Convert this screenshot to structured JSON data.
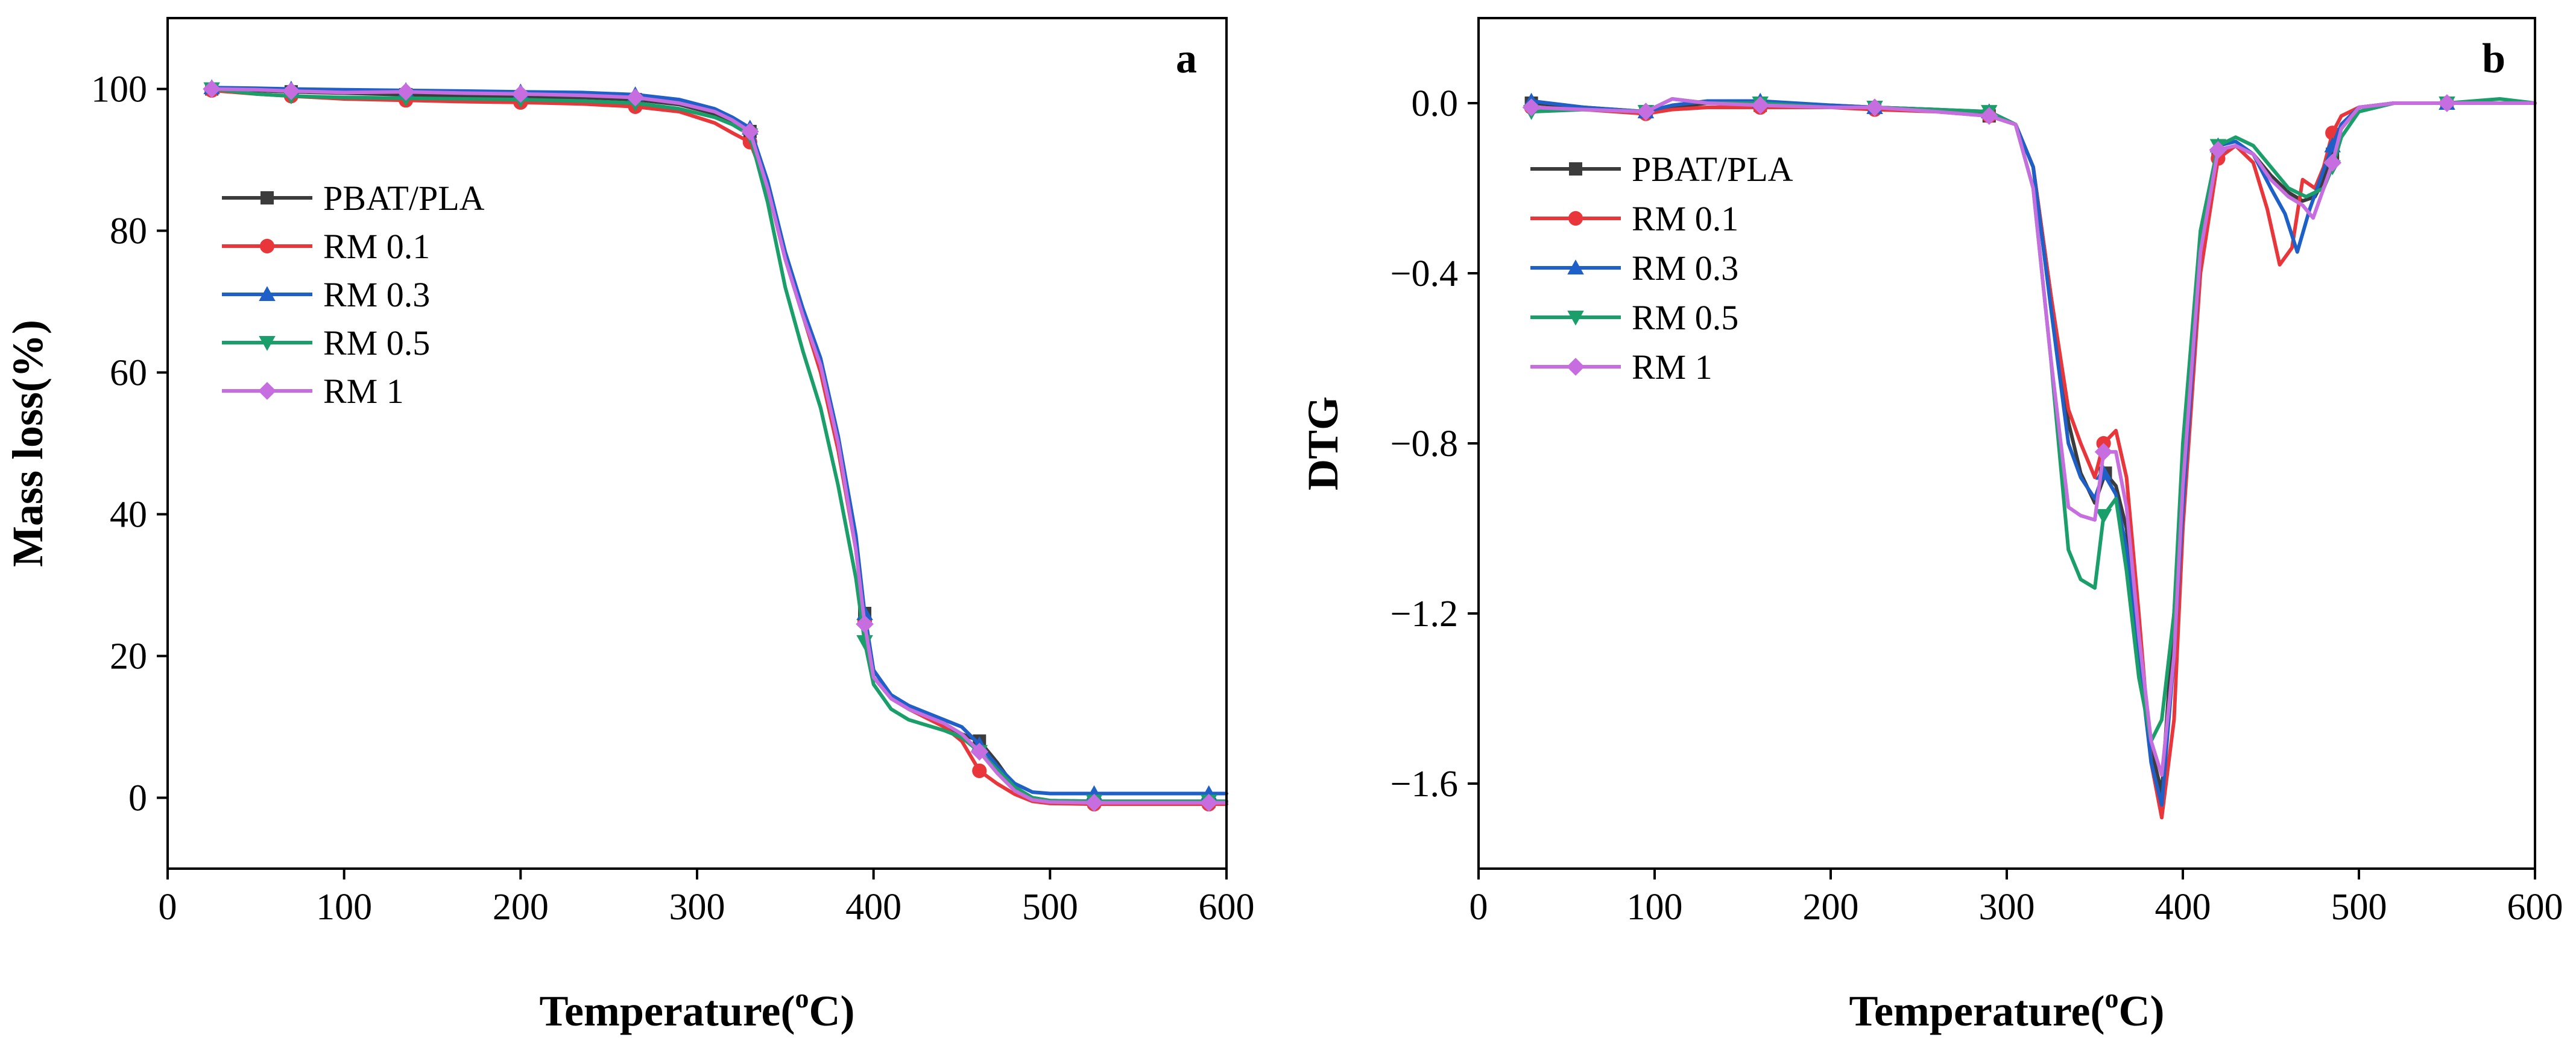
{
  "chart_data": [
    {
      "type": "line",
      "panel": "a",
      "xlabel": "Temperature(oC)",
      "xlabel_main": "Temperature(",
      "xlabel_sup": "o",
      "xlabel_tail": "C)",
      "ylabel": "Mass loss(%)",
      "xlim": [
        0,
        600
      ],
      "ylim": [
        -10,
        110
      ],
      "xticks": [
        "0",
        "100",
        "200",
        "300",
        "400",
        "500",
        "600"
      ],
      "yticks": [
        "0",
        "20",
        "40",
        "60",
        "80",
        "100"
      ],
      "legend_position": "upper-left",
      "series": [
        {
          "name": "PBAT/PLA",
          "color": "#3c3c3c",
          "marker": "square",
          "x": [
            25,
            50,
            70,
            100,
            135,
            170,
            200,
            235,
            265,
            290,
            310,
            320,
            330,
            340,
            350,
            360,
            370,
            380,
            390,
            395,
            400,
            410,
            420,
            440,
            450,
            460,
            470,
            480,
            490,
            500,
            525,
            560,
            590,
            600
          ],
          "y": [
            100,
            99.8,
            99.6,
            99.4,
            99.2,
            99,
            98.9,
            98.8,
            98.5,
            97.8,
            96.5,
            95.5,
            94,
            86,
            76,
            68,
            61,
            50,
            36,
            26,
            17,
            14,
            12.5,
            10.2,
            9,
            8,
            5,
            1.5,
            0,
            -0.4,
            -0.5,
            -0.5,
            -0.5,
            -0.5
          ],
          "marker_x": [
            25,
            70,
            135,
            200,
            265,
            330,
            395,
            460,
            525,
            590
          ]
        },
        {
          "name": "RM 0.1",
          "color": "#e8363a",
          "marker": "circle",
          "x": [
            25,
            50,
            70,
            100,
            135,
            170,
            200,
            235,
            265,
            290,
            310,
            320,
            330,
            340,
            350,
            360,
            370,
            380,
            390,
            395,
            400,
            410,
            420,
            440,
            450,
            460,
            470,
            480,
            490,
            500,
            525,
            560,
            590,
            600
          ],
          "y": [
            99.8,
            99.3,
            99,
            98.6,
            98.4,
            98.2,
            98.1,
            97.9,
            97.5,
            96.8,
            95.2,
            93.8,
            92.5,
            86,
            76,
            68,
            60,
            49,
            35,
            25,
            17,
            14,
            12.5,
            10,
            8,
            3.8,
            2,
            0.5,
            -0.5,
            -0.8,
            -0.9,
            -0.9,
            -0.9,
            -0.9
          ],
          "marker_x": [
            25,
            70,
            135,
            200,
            265,
            330,
            395,
            460,
            525,
            590
          ]
        },
        {
          "name": "RM 0.3",
          "color": "#1e5fc8",
          "marker": "triangle-up",
          "x": [
            25,
            50,
            70,
            100,
            135,
            170,
            200,
            235,
            265,
            290,
            310,
            320,
            330,
            340,
            350,
            360,
            370,
            380,
            390,
            395,
            400,
            410,
            420,
            440,
            450,
            460,
            470,
            480,
            490,
            500,
            525,
            560,
            590,
            600
          ],
          "y": [
            100.2,
            100.1,
            100,
            99.9,
            99.8,
            99.7,
            99.6,
            99.5,
            99.2,
            98.5,
            97.2,
            96,
            94.5,
            87,
            77,
            69,
            62,
            51,
            37,
            26,
            18,
            14.5,
            13,
            11,
            10,
            7.5,
            4.5,
            2,
            0.8,
            0.6,
            0.6,
            0.6,
            0.6,
            0.6
          ],
          "marker_x": [
            25,
            70,
            135,
            200,
            265,
            330,
            395,
            460,
            525,
            590
          ]
        },
        {
          "name": "RM 0.5",
          "color": "#1a9e6a",
          "marker": "triangle-down",
          "x": [
            25,
            50,
            70,
            100,
            135,
            170,
            200,
            235,
            265,
            290,
            310,
            320,
            330,
            340,
            350,
            360,
            370,
            380,
            390,
            395,
            400,
            410,
            420,
            440,
            450,
            460,
            470,
            480,
            490,
            500,
            525,
            560,
            590,
            600
          ],
          "y": [
            100,
            99.3,
            99,
            98.8,
            98.7,
            98.6,
            98.5,
            98.3,
            98,
            97.2,
            96,
            95,
            93.5,
            84,
            72,
            63,
            55,
            44,
            31,
            22,
            16,
            12.5,
            11,
            9.5,
            8.5,
            6.5,
            4,
            1.5,
            0,
            -0.4,
            -0.5,
            -0.5,
            -0.5,
            -0.5
          ],
          "marker_x": [
            25,
            70,
            135,
            200,
            265,
            330,
            395,
            460,
            525,
            590
          ]
        },
        {
          "name": "RM 1",
          "color": "#c66ee0",
          "marker": "diamond",
          "x": [
            25,
            50,
            70,
            100,
            135,
            170,
            200,
            235,
            265,
            290,
            310,
            320,
            330,
            340,
            350,
            360,
            370,
            380,
            390,
            395,
            400,
            410,
            420,
            440,
            450,
            460,
            470,
            480,
            490,
            500,
            525,
            560,
            590,
            600
          ],
          "y": [
            100,
            99.9,
            99.7,
            99.5,
            99.6,
            99.4,
            99.3,
            99.1,
            98.8,
            98,
            96.8,
            95.6,
            94,
            86,
            76,
            68,
            61,
            50,
            35,
            24.5,
            17,
            14,
            12.5,
            10.5,
            9,
            6.5,
            3.5,
            1,
            -0.3,
            -0.6,
            -0.7,
            -0.7,
            -0.7,
            -0.7
          ],
          "marker_x": [
            25,
            70,
            135,
            200,
            265,
            330,
            395,
            460,
            525,
            590
          ]
        }
      ]
    },
    {
      "type": "line",
      "panel": "b",
      "xlabel": "Temperature(oC)",
      "xlabel_main": "Temperature(",
      "xlabel_sup": "o",
      "xlabel_tail": "C)",
      "ylabel": "DTG",
      "xlim": [
        0,
        600
      ],
      "ylim": [
        -1.8,
        0.2
      ],
      "xticks": [
        "0",
        "100",
        "200",
        "300",
        "400",
        "500",
        "600"
      ],
      "yticks": [
        "0.0",
        "−0.4",
        "−0.8",
        "−1.2",
        "−1.6"
      ],
      "legend_position": "upper-left",
      "series": [
        {
          "name": "PBAT/PLA",
          "color": "#3c3c3c",
          "marker": "square",
          "x": [
            30,
            60,
            95,
            110,
            130,
            160,
            200,
            225,
            260,
            290,
            305,
            315,
            325,
            335,
            342,
            350,
            356,
            362,
            368,
            375,
            382,
            388,
            395,
            400,
            410,
            420,
            430,
            440,
            450,
            460,
            468,
            475,
            480,
            485,
            490,
            500,
            520,
            550,
            580,
            600
          ],
          "y": [
            0,
            -0.01,
            -0.02,
            -0.01,
            0,
            -0.005,
            -0.005,
            -0.01,
            -0.015,
            -0.03,
            -0.05,
            -0.15,
            -0.45,
            -0.75,
            -0.87,
            -0.94,
            -0.87,
            -0.9,
            -1.0,
            -1.25,
            -1.52,
            -1.62,
            -1.2,
            -0.9,
            -0.35,
            -0.12,
            -0.1,
            -0.12,
            -0.17,
            -0.21,
            -0.23,
            -0.22,
            -0.18,
            -0.12,
            -0.06,
            -0.01,
            0,
            0,
            0,
            0
          ],
          "marker_x": [
            30,
            95,
            160,
            225,
            290,
            356,
            420,
            485,
            550
          ]
        },
        {
          "name": "RM 0.1",
          "color": "#e8363a",
          "marker": "circle",
          "x": [
            30,
            60,
            95,
            110,
            130,
            160,
            200,
            225,
            260,
            290,
            305,
            315,
            325,
            335,
            342,
            350,
            355,
            362,
            368,
            375,
            382,
            388,
            395,
            400,
            410,
            420,
            430,
            440,
            448,
            455,
            462,
            468,
            475,
            480,
            485,
            490,
            500,
            520,
            550,
            580,
            600
          ],
          "y": [
            -0.01,
            -0.015,
            -0.025,
            -0.015,
            -0.01,
            -0.01,
            -0.01,
            -0.015,
            -0.02,
            -0.03,
            -0.05,
            -0.15,
            -0.45,
            -0.72,
            -0.8,
            -0.88,
            -0.8,
            -0.77,
            -0.88,
            -1.2,
            -1.55,
            -1.68,
            -1.45,
            -1.0,
            -0.4,
            -0.13,
            -0.1,
            -0.14,
            -0.25,
            -0.38,
            -0.34,
            -0.18,
            -0.2,
            -0.15,
            -0.07,
            -0.03,
            -0.01,
            0,
            0,
            0,
            0
          ],
          "marker_x": [
            30,
            95,
            160,
            225,
            290,
            355,
            420,
            485,
            550
          ]
        },
        {
          "name": "RM 0.3",
          "color": "#1e5fc8",
          "marker": "triangle-up",
          "x": [
            30,
            60,
            95,
            110,
            130,
            160,
            200,
            225,
            260,
            290,
            305,
            315,
            325,
            335,
            342,
            350,
            355,
            362,
            368,
            375,
            382,
            388,
            395,
            400,
            410,
            420,
            430,
            440,
            450,
            458,
            465,
            472,
            478,
            485,
            490,
            500,
            520,
            550,
            580,
            600
          ],
          "y": [
            0.005,
            -0.01,
            -0.02,
            -0.005,
            0.005,
            0.005,
            -0.005,
            -0.01,
            -0.015,
            -0.02,
            -0.05,
            -0.15,
            -0.48,
            -0.8,
            -0.88,
            -0.93,
            -0.87,
            -0.92,
            -1.05,
            -1.3,
            -1.55,
            -1.65,
            -1.3,
            -0.95,
            -0.35,
            -0.1,
            -0.09,
            -0.12,
            -0.2,
            -0.26,
            -0.35,
            -0.25,
            -0.18,
            -0.1,
            -0.05,
            -0.01,
            0,
            0,
            0,
            0
          ],
          "marker_x": [
            30,
            95,
            160,
            225,
            290,
            355,
            420,
            485,
            550
          ]
        },
        {
          "name": "RM 0.5",
          "color": "#1a9e6a",
          "marker": "triangle-down",
          "x": [
            30,
            60,
            95,
            110,
            130,
            160,
            200,
            225,
            260,
            290,
            305,
            315,
            325,
            335,
            342,
            350,
            355,
            362,
            368,
            375,
            382,
            388,
            395,
            400,
            410,
            420,
            430,
            440,
            450,
            460,
            470,
            480,
            485,
            490,
            500,
            520,
            550,
            580,
            600
          ],
          "y": [
            -0.02,
            -0.015,
            -0.02,
            0.01,
            0,
            0,
            -0.01,
            -0.01,
            -0.015,
            -0.02,
            -0.05,
            -0.2,
            -0.6,
            -1.05,
            -1.12,
            -1.14,
            -0.97,
            -0.93,
            -1.1,
            -1.35,
            -1.5,
            -1.45,
            -1.2,
            -0.8,
            -0.3,
            -0.1,
            -0.08,
            -0.1,
            -0.15,
            -0.2,
            -0.22,
            -0.2,
            -0.15,
            -0.08,
            -0.02,
            0,
            0,
            0.01,
            0
          ],
          "marker_x": [
            30,
            95,
            160,
            225,
            290,
            355,
            420,
            485,
            550
          ]
        },
        {
          "name": "RM 1",
          "color": "#c66ee0",
          "marker": "diamond",
          "x": [
            30,
            60,
            95,
            110,
            130,
            160,
            200,
            225,
            260,
            290,
            305,
            315,
            325,
            335,
            342,
            350,
            355,
            362,
            368,
            375,
            382,
            388,
            395,
            400,
            410,
            420,
            430,
            440,
            450,
            460,
            468,
            474,
            480,
            485,
            490,
            500,
            520,
            550,
            580,
            600
          ],
          "y": [
            -0.01,
            -0.015,
            -0.02,
            0.01,
            0,
            -0.005,
            -0.01,
            -0.01,
            -0.02,
            -0.03,
            -0.05,
            -0.2,
            -0.6,
            -0.95,
            -0.97,
            -0.98,
            -0.82,
            -0.82,
            -0.95,
            -1.25,
            -1.5,
            -1.58,
            -1.3,
            -0.9,
            -0.35,
            -0.11,
            -0.1,
            -0.12,
            -0.18,
            -0.22,
            -0.24,
            -0.27,
            -0.2,
            -0.14,
            -0.06,
            -0.01,
            0,
            0,
            0,
            0
          ],
          "marker_x": [
            30,
            95,
            160,
            225,
            290,
            355,
            420,
            485,
            550
          ]
        }
      ]
    }
  ]
}
